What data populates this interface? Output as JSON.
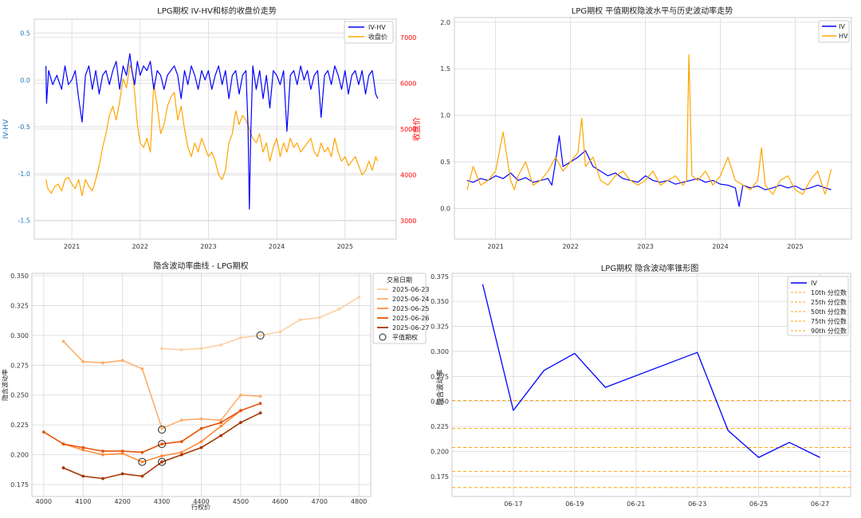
{
  "colors": {
    "iv": "#0000ff",
    "price": "#ffa500",
    "hv": "#ffa500",
    "left_axis": "#1f77b4",
    "right_axis": "#ff0000",
    "grid": "#d9d9d9",
    "percentile": "#ffa500",
    "smile": [
      "#fdd0a2",
      "#fdae6b",
      "#fd8d3c",
      "#e6550d",
      "#a63603"
    ]
  },
  "chart_data": [
    {
      "id": "c1",
      "type": "line",
      "title": "LPG期权 IV-HV和标的收盘价走势",
      "ylabel": "IV-HV",
      "y2label": "收盘价",
      "x_ticks": [
        "2021",
        "2022",
        "2023",
        "2024",
        "2025"
      ],
      "y_ticks": [
        "0.5",
        "0.0",
        "-0.5",
        "-1.0",
        "-1.5"
      ],
      "y2_ticks": [
        "7000",
        "6000",
        "5000",
        "4000",
        "3000"
      ],
      "ylim": [
        -1.7,
        0.65
      ],
      "y2lim": [
        2600,
        7400
      ],
      "xlim": [
        2020.45,
        2025.75
      ],
      "legend": [
        "IV-HV",
        "收盘价"
      ],
      "legend_position": "top-right",
      "series": [
        {
          "name": "IV-HV",
          "x": [
            2020.62,
            2020.63,
            2020.66,
            2020.72,
            2020.78,
            2020.85,
            2020.9,
            2020.95,
            2021.0,
            2021.05,
            2021.1,
            2021.15,
            2021.2,
            2021.25,
            2021.3,
            2021.35,
            2021.4,
            2021.45,
            2021.5,
            2021.55,
            2021.6,
            2021.65,
            2021.7,
            2021.75,
            2021.8,
            2021.85,
            2021.88,
            2021.92,
            2021.96,
            2022.0,
            2022.05,
            2022.1,
            2022.15,
            2022.2,
            2022.25,
            2022.3,
            2022.35,
            2022.4,
            2022.45,
            2022.5,
            2022.55,
            2022.6,
            2022.65,
            2022.7,
            2022.75,
            2022.8,
            2022.85,
            2022.9,
            2022.95,
            2023.0,
            2023.05,
            2023.1,
            2023.15,
            2023.2,
            2023.25,
            2023.3,
            2023.35,
            2023.4,
            2023.45,
            2023.5,
            2023.55,
            2023.58,
            2023.6,
            2023.62,
            2023.65,
            2023.7,
            2023.75,
            2023.8,
            2023.85,
            2023.9,
            2023.95,
            2024.0,
            2024.05,
            2024.1,
            2024.15,
            2024.2,
            2024.25,
            2024.3,
            2024.35,
            2024.4,
            2024.45,
            2024.5,
            2024.55,
            2024.6,
            2024.65,
            2024.7,
            2024.75,
            2024.8,
            2024.85,
            2024.9,
            2024.95,
            2025.0,
            2025.05,
            2025.1,
            2025.15,
            2025.2,
            2025.25,
            2025.3,
            2025.35,
            2025.4,
            2025.45,
            2025.48
          ],
          "values": [
            0.15,
            -0.25,
            0.1,
            -0.05,
            0.05,
            -0.1,
            0.15,
            -0.05,
            0.0,
            0.1,
            -0.2,
            -0.45,
            0.05,
            0.15,
            -0.1,
            0.1,
            -0.15,
            0.05,
            0.1,
            -0.05,
            0.1,
            0.2,
            -0.1,
            0.15,
            0.05,
            0.28,
            0.1,
            -0.05,
            0.2,
            0.05,
            0.15,
            0.1,
            0.2,
            -0.1,
            0.1,
            0.05,
            -0.1,
            0.05,
            0.1,
            0.15,
            0.05,
            -0.2,
            0.1,
            -0.05,
            0.15,
            0.05,
            -0.1,
            0.1,
            0.0,
            0.1,
            -0.1,
            0.05,
            0.15,
            -0.05,
            0.1,
            -0.2,
            0.05,
            0.1,
            -0.15,
            0.05,
            0.1,
            -0.5,
            -1.38,
            -0.6,
            0.15,
            -0.1,
            0.1,
            -0.2,
            0.05,
            -0.3,
            0.1,
            0.05,
            -0.05,
            0.1,
            -0.55,
            0.05,
            0.1,
            -0.05,
            0.15,
            0.0,
            0.1,
            -0.1,
            0.05,
            0.1,
            -0.4,
            0.05,
            0.1,
            -0.05,
            0.15,
            0.05,
            -0.1,
            0.1,
            -0.15,
            0.05,
            0.1,
            -0.05,
            0.1,
            -0.15,
            0.05,
            0.1,
            -0.15,
            -0.2
          ]
        },
        {
          "name": "收盘价",
          "x": [
            2020.62,
            2020.65,
            2020.7,
            2020.75,
            2020.8,
            2020.85,
            2020.9,
            2020.95,
            2021.0,
            2021.05,
            2021.1,
            2021.15,
            2021.2,
            2021.25,
            2021.3,
            2021.35,
            2021.4,
            2021.45,
            2021.5,
            2021.55,
            2021.6,
            2021.65,
            2021.7,
            2021.75,
            2021.8,
            2021.85,
            2021.88,
            2021.92,
            2021.96,
            2022.0,
            2022.05,
            2022.1,
            2022.15,
            2022.2,
            2022.25,
            2022.3,
            2022.35,
            2022.4,
            2022.45,
            2022.5,
            2022.55,
            2022.6,
            2022.65,
            2022.7,
            2022.75,
            2022.8,
            2022.85,
            2022.9,
            2022.95,
            2023.0,
            2023.05,
            2023.1,
            2023.15,
            2023.2,
            2023.25,
            2023.3,
            2023.35,
            2023.4,
            2023.45,
            2023.5,
            2023.55,
            2023.6,
            2023.65,
            2023.7,
            2023.75,
            2023.8,
            2023.85,
            2023.9,
            2023.95,
            2024.0,
            2024.05,
            2024.1,
            2024.15,
            2024.2,
            2024.25,
            2024.3,
            2024.35,
            2024.4,
            2024.45,
            2024.5,
            2024.55,
            2024.6,
            2024.65,
            2024.7,
            2024.75,
            2024.8,
            2024.85,
            2024.9,
            2024.95,
            2025.0,
            2025.05,
            2025.1,
            2025.15,
            2025.2,
            2025.25,
            2025.3,
            2025.35,
            2025.4,
            2025.45,
            2025.48
          ],
          "values": [
            3900,
            3700,
            3600,
            3750,
            3800,
            3650,
            3900,
            3950,
            3800,
            3700,
            3900,
            3550,
            3900,
            3750,
            3650,
            3900,
            4200,
            4600,
            4900,
            5300,
            5500,
            5200,
            5600,
            6100,
            5900,
            6400,
            6300,
            5800,
            5100,
            4700,
            4600,
            4800,
            4500,
            6000,
            5500,
            4900,
            5100,
            5500,
            5700,
            5800,
            5200,
            5500,
            5000,
            4600,
            4400,
            4700,
            4500,
            4800,
            4600,
            4400,
            4500,
            4300,
            4000,
            3900,
            4100,
            4700,
            4900,
            5400,
            5100,
            5300,
            5200,
            5000,
            4800,
            4700,
            4900,
            4500,
            4700,
            4300,
            4600,
            4800,
            4400,
            4700,
            4500,
            4800,
            4600,
            4700,
            4500,
            4600,
            4700,
            4800,
            4500,
            4400,
            4700,
            4500,
            4600,
            4400,
            4800,
            4500,
            4300,
            4400,
            4200,
            4300,
            4400,
            4200,
            4000,
            4100,
            4300,
            4100,
            4400,
            4300
          ]
        }
      ]
    },
    {
      "id": "c2",
      "type": "line",
      "title": "LPG期权 平值期权隐波水平与历史波动率走势",
      "x_ticks": [
        "2021",
        "2022",
        "2023",
        "2024",
        "2025"
      ],
      "y_ticks": [
        "2.0",
        "1.5",
        "1.0",
        "0.5",
        "0.0"
      ],
      "ylim": [
        -0.33,
        2.05
      ],
      "xlim": [
        2020.45,
        2025.75
      ],
      "legend": [
        "IV",
        "HV"
      ],
      "legend_position": "top-right",
      "series": [
        {
          "name": "IV",
          "x": [
            2020.62,
            2020.7,
            2020.8,
            2020.9,
            2021.0,
            2021.1,
            2021.2,
            2021.3,
            2021.4,
            2021.5,
            2021.6,
            2021.7,
            2021.75,
            2021.8,
            2021.85,
            2021.9,
            2022.0,
            2022.1,
            2022.2,
            2022.3,
            2022.4,
            2022.5,
            2022.6,
            2022.7,
            2022.8,
            2022.9,
            2023.0,
            2023.1,
            2023.2,
            2023.3,
            2023.4,
            2023.5,
            2023.6,
            2023.7,
            2023.8,
            2023.9,
            2024.0,
            2024.1,
            2024.2,
            2024.25,
            2024.3,
            2024.4,
            2024.5,
            2024.6,
            2024.7,
            2024.8,
            2024.9,
            2025.0,
            2025.1,
            2025.2,
            2025.3,
            2025.4,
            2025.48
          ],
          "values": [
            0.3,
            0.28,
            0.32,
            0.3,
            0.35,
            0.32,
            0.38,
            0.3,
            0.33,
            0.28,
            0.3,
            0.32,
            0.25,
            0.5,
            0.78,
            0.45,
            0.5,
            0.55,
            0.62,
            0.45,
            0.4,
            0.35,
            0.38,
            0.32,
            0.3,
            0.28,
            0.35,
            0.3,
            0.28,
            0.3,
            0.26,
            0.28,
            0.3,
            0.32,
            0.28,
            0.3,
            0.26,
            0.25,
            0.22,
            0.02,
            0.25,
            0.22,
            0.24,
            0.2,
            0.22,
            0.25,
            0.22,
            0.24,
            0.2,
            0.22,
            0.25,
            0.22,
            0.2
          ]
        },
        {
          "name": "HV",
          "x": [
            2020.62,
            2020.7,
            2020.8,
            2020.9,
            2021.0,
            2021.1,
            2021.2,
            2021.25,
            2021.3,
            2021.4,
            2021.5,
            2021.6,
            2021.7,
            2021.8,
            2021.9,
            2022.0,
            2022.1,
            2022.15,
            2022.2,
            2022.3,
            2022.4,
            2022.5,
            2022.6,
            2022.7,
            2022.8,
            2022.9,
            2023.0,
            2023.1,
            2023.2,
            2023.3,
            2023.4,
            2023.5,
            2023.55,
            2023.58,
            2023.62,
            2023.7,
            2023.8,
            2023.9,
            2024.0,
            2024.1,
            2024.2,
            2024.3,
            2024.4,
            2024.5,
            2024.55,
            2024.6,
            2024.7,
            2024.8,
            2024.9,
            2025.0,
            2025.1,
            2025.2,
            2025.3,
            2025.4,
            2025.48
          ],
          "values": [
            0.2,
            0.45,
            0.25,
            0.3,
            0.4,
            0.82,
            0.3,
            0.2,
            0.35,
            0.5,
            0.25,
            0.3,
            0.4,
            0.55,
            0.4,
            0.5,
            0.6,
            0.97,
            0.45,
            0.55,
            0.3,
            0.25,
            0.35,
            0.4,
            0.3,
            0.25,
            0.3,
            0.4,
            0.25,
            0.3,
            0.35,
            0.25,
            0.3,
            1.65,
            0.35,
            0.3,
            0.4,
            0.25,
            0.35,
            0.55,
            0.3,
            0.25,
            0.2,
            0.3,
            0.65,
            0.25,
            0.15,
            0.3,
            0.35,
            0.2,
            0.15,
            0.3,
            0.4,
            0.15,
            0.42
          ]
        }
      ]
    },
    {
      "id": "c3",
      "type": "line",
      "title": "隐含波动率曲线 - LPG期权",
      "xlabel": "行权价",
      "ylabel": "隐含波动率",
      "x_ticks": [
        "4000",
        "4100",
        "4200",
        "4300",
        "4400",
        "4500",
        "4600",
        "4700",
        "4800"
      ],
      "y_ticks": [
        "0.350",
        "0.325",
        "0.300",
        "0.275",
        "0.250",
        "0.225",
        "0.200",
        "0.175"
      ],
      "xlim": [
        3970,
        4830
      ],
      "ylim": [
        0.165,
        0.352
      ],
      "legend_title": "交易日期",
      "legend": [
        "2025-06-23",
        "2025-06-24",
        "2025-06-25",
        "2025-06-26",
        "2025-06-27",
        "平值期权"
      ],
      "legend_position": "outside-right",
      "series": [
        {
          "name": "2025-06-23",
          "x": [
            4300,
            4350,
            4400,
            4450,
            4500,
            4550,
            4600,
            4650,
            4700,
            4750,
            4800
          ],
          "values": [
            0.289,
            0.288,
            0.289,
            0.292,
            0.298,
            0.3,
            0.303,
            0.313,
            0.315,
            0.322,
            0.332
          ],
          "atm": [
            4550,
            0.3
          ]
        },
        {
          "name": "2025-06-24",
          "x": [
            4050,
            4100,
            4150,
            4200,
            4250,
            4300,
            4350,
            4400,
            4450,
            4500,
            4550
          ],
          "values": [
            0.295,
            0.278,
            0.277,
            0.279,
            0.272,
            0.222,
            0.229,
            0.23,
            0.229,
            0.25,
            0.249
          ],
          "atm": [
            4300,
            0.221
          ]
        },
        {
          "name": "2025-06-25",
          "x": [
            4050,
            4100,
            4150,
            4200,
            4250,
            4300,
            4350,
            4400,
            4450,
            4500
          ],
          "values": [
            0.209,
            0.204,
            0.2,
            0.201,
            0.194,
            0.199,
            0.202,
            0.211,
            0.224,
            0.237
          ],
          "atm": [
            4250,
            0.194
          ]
        },
        {
          "name": "2025-06-26",
          "x": [
            4000,
            4050,
            4100,
            4150,
            4200,
            4250,
            4300,
            4350,
            4400,
            4450,
            4500,
            4550
          ],
          "values": [
            0.219,
            0.209,
            0.206,
            0.203,
            0.203,
            0.202,
            0.209,
            0.211,
            0.222,
            0.227,
            0.237,
            0.243
          ],
          "atm": [
            4300,
            0.209
          ]
        },
        {
          "name": "2025-06-27",
          "x": [
            4050,
            4100,
            4150,
            4200,
            4250,
            4300,
            4350,
            4400,
            4450,
            4500,
            4550
          ],
          "values": [
            0.189,
            0.182,
            0.18,
            0.184,
            0.182,
            0.194,
            0.2,
            0.206,
            0.216,
            0.227,
            0.235
          ],
          "atm": [
            4300,
            0.194
          ]
        }
      ]
    },
    {
      "id": "c4",
      "type": "line",
      "title": "LPG期权 隐含波动率锥形图",
      "ylabel": "隐含波动率",
      "x_ticks": [
        "06-17",
        "06-19",
        "06-21",
        "06-23",
        "06-25",
        "06-27"
      ],
      "y_ticks": [
        "0.375",
        "0.350",
        "0.325",
        "0.300",
        "0.275",
        "0.250",
        "0.225",
        "0.200",
        "0.175"
      ],
      "xlim": [
        "06-15",
        "06-28"
      ],
      "ylim": [
        0.155,
        0.378
      ],
      "legend": [
        "IV",
        "10th 分位数",
        "25th 分位数",
        "50th 分位数",
        "75th 分位数",
        "90th 分位数"
      ],
      "legend_position": "top-right",
      "series": [
        {
          "name": "IV",
          "x": [
            "06-16",
            "06-17",
            "06-18",
            "06-19",
            "06-20",
            "06-23",
            "06-24",
            "06-25",
            "06-26",
            "06-27"
          ],
          "values": [
            0.367,
            0.241,
            0.281,
            0.298,
            0.264,
            0.299,
            0.221,
            0.194,
            0.209,
            0.194
          ]
        }
      ],
      "percentiles": [
        0.164,
        0.18,
        0.204,
        0.223,
        0.251
      ]
    }
  ]
}
